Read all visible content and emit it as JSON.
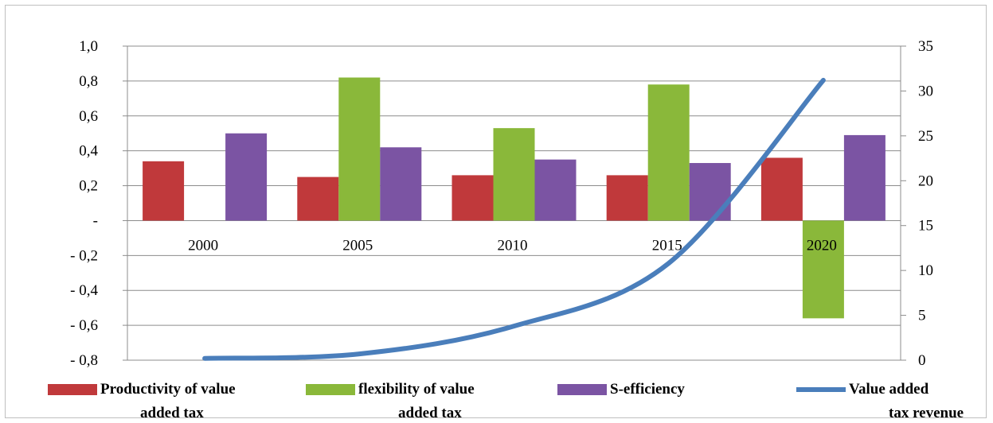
{
  "chart_data": {
    "type": "bar",
    "categories": [
      "2000",
      "2005",
      "2010",
      "2015",
      "2020"
    ],
    "series": [
      {
        "name": "Productivity of value added tax",
        "type": "bar",
        "axis": "left",
        "color": "#c0393b",
        "values": [
          0.34,
          0.25,
          0.26,
          0.26,
          0.36
        ]
      },
      {
        "name": "flexibility of value added tax",
        "type": "bar",
        "axis": "left",
        "color": "#8ab83a",
        "values": [
          null,
          0.82,
          0.53,
          0.78,
          -0.56
        ]
      },
      {
        "name": "S-efficiency",
        "type": "bar",
        "axis": "left",
        "color": "#7b54a3",
        "values": [
          0.5,
          0.42,
          0.35,
          0.33,
          0.49
        ]
      },
      {
        "name": "Value added tax revenue",
        "type": "line",
        "axis": "right",
        "color": "#4a7ebb",
        "values": [
          0.2,
          0.7,
          3.8,
          10.8,
          31.2
        ]
      }
    ],
    "left_axis": {
      "ylim": [
        -0.8,
        1.0
      ],
      "ticks": [
        "1,0",
        "0,8",
        "0,6",
        "0,4",
        "0,2",
        "-",
        "- 0,2",
        "- 0,4",
        "- 0,6",
        "- 0,8"
      ]
    },
    "right_axis": {
      "ylim": [
        0,
        35
      ],
      "ticks": [
        "35",
        "30",
        "25",
        "20",
        "15",
        "10",
        "5",
        "0"
      ]
    },
    "legend": {
      "position": "bottom",
      "items": [
        {
          "lines": [
            "Productivity of value",
            "added tax"
          ],
          "color": "#c0393b",
          "kind": "bar"
        },
        {
          "lines": [
            "flexibility of value",
            "added tax"
          ],
          "color": "#8ab83a",
          "kind": "bar"
        },
        {
          "lines": [
            "S-efficiency"
          ],
          "color": "#7b54a3",
          "kind": "bar"
        },
        {
          "lines": [
            "Value added",
            "tax revenue"
          ],
          "color": "#4a7ebb",
          "kind": "line"
        }
      ]
    },
    "grid": true
  }
}
